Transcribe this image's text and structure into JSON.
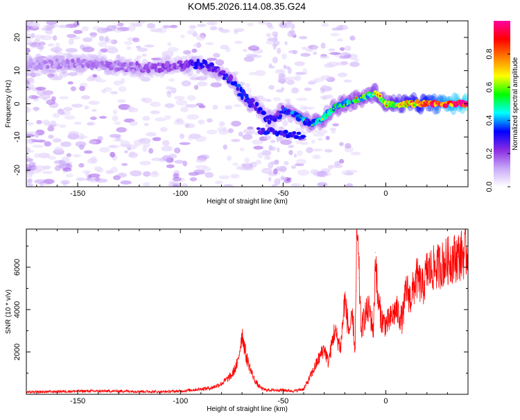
{
  "title": "KOM5.2026.114.08.35.G24",
  "chart_data": [
    {
      "type": "heatmap",
      "xlabel": "Height of straight line (km)",
      "ylabel": "Frequency (Hz)",
      "xlim": [
        -175,
        40
      ],
      "ylim": [
        -25,
        25
      ],
      "xticks": [
        -150,
        -100,
        -50,
        0
      ],
      "yticks": [
        -20,
        -10,
        0,
        10,
        20
      ],
      "colorbar": {
        "label": "Normalized spectral amplitude",
        "range": [
          0.0,
          1.0
        ],
        "ticks": [
          0.0,
          0.2,
          0.4,
          0.6,
          0.8
        ],
        "colors": [
          "#ffffff",
          "#c8a8f8",
          "#8a2be2",
          "#0000ff",
          "#00ffff",
          "#00ff00",
          "#ffff00",
          "#ff8000",
          "#ff0000",
          "#ff00a0"
        ]
      },
      "ridge": {
        "points": [
          [
            -175,
            12
          ],
          [
            -155,
            12
          ],
          [
            -140,
            12
          ],
          [
            -125,
            11
          ],
          [
            -110,
            11
          ],
          [
            -100,
            11.5
          ],
          [
            -90,
            12
          ],
          [
            -82,
            10
          ],
          [
            -75,
            7
          ],
          [
            -70,
            3
          ],
          [
            -65,
            0
          ],
          [
            -60,
            -3
          ],
          [
            -55,
            -5
          ],
          [
            -50,
            -2
          ],
          [
            -45,
            -3
          ],
          [
            -40,
            -5
          ],
          [
            -35,
            -6
          ],
          [
            -30,
            -4
          ],
          [
            -25,
            -1
          ],
          [
            -20,
            0
          ],
          [
            -15,
            1
          ],
          [
            -10,
            2
          ],
          [
            -5,
            3.5
          ],
          [
            0,
            0
          ],
          [
            5,
            0
          ],
          [
            10,
            0
          ],
          [
            20,
            0
          ],
          [
            30,
            0
          ],
          [
            40,
            0
          ]
        ],
        "amplitude": [
          0.12,
          0.14,
          0.15,
          0.16,
          0.18,
          0.22,
          0.28,
          0.25,
          0.3,
          0.32,
          0.3,
          0.28,
          0.25,
          0.3,
          0.35,
          0.35,
          0.4,
          0.42,
          0.45,
          0.45,
          0.48,
          0.5,
          0.55,
          0.55,
          0.6,
          0.65,
          0.75,
          0.9,
          0.95
        ]
      }
    },
    {
      "type": "line",
      "xlabel": "Height of straight line (km)",
      "ylabel": "SNR (10 * v/v)",
      "xlim": [
        -175,
        40
      ],
      "ylim": [
        0,
        7800
      ],
      "xticks": [
        -150,
        -100,
        -50,
        0
      ],
      "yticks": [
        2000,
        4000,
        6000
      ],
      "color": "#ff0000",
      "x": [
        -175,
        -150,
        -125,
        -110,
        -100,
        -95,
        -90,
        -85,
        -80,
        -75,
        -72,
        -70,
        -68,
        -66,
        -64,
        -62,
        -60,
        -58,
        -55,
        -50,
        -45,
        -40,
        -38,
        -35,
        -32,
        -30,
        -28,
        -26,
        -25,
        -22,
        -20,
        -18,
        -16,
        -15,
        -14,
        -13,
        -12,
        -10,
        -8,
        -6,
        -5,
        -4,
        -2,
        0,
        2,
        5,
        8,
        10,
        12,
        15,
        18,
        20,
        25,
        30,
        35,
        40
      ],
      "y": [
        100,
        150,
        150,
        120,
        150,
        200,
        250,
        300,
        500,
        900,
        1500,
        2900,
        1800,
        1200,
        700,
        400,
        250,
        200,
        200,
        200,
        150,
        250,
        600,
        1200,
        1800,
        2200,
        1500,
        2500,
        3000,
        2200,
        4500,
        3000,
        3500,
        2000,
        7800,
        5500,
        3000,
        3800,
        4000,
        3000,
        6700,
        4500,
        3500,
        3300,
        3500,
        4000,
        3500,
        5000,
        4500,
        5500,
        5000,
        5800,
        6000,
        6300,
        6500,
        6700
      ]
    }
  ]
}
